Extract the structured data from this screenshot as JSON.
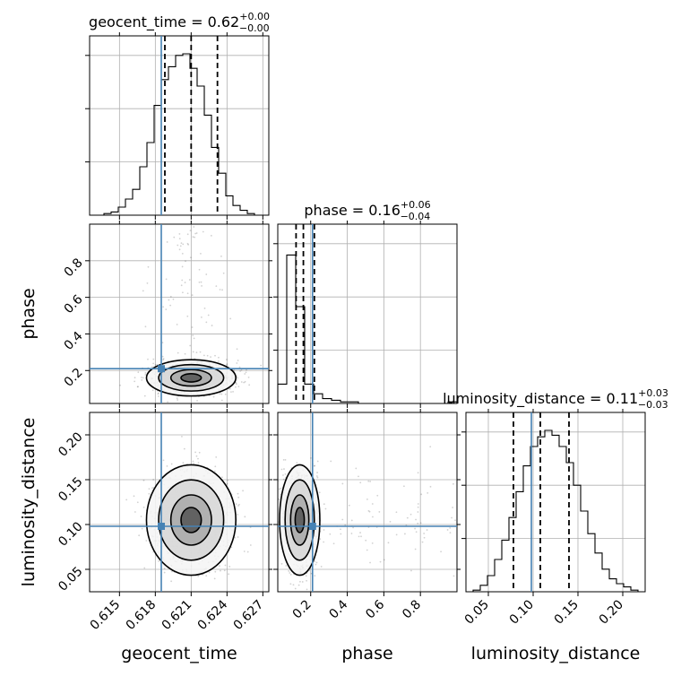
{
  "chart_data": {
    "type": "corner",
    "parameters": [
      {
        "name": "geocent_time",
        "range": [
          0.6125,
          0.6275
        ],
        "ticks": [
          0.615,
          0.618,
          0.621,
          0.624,
          0.627
        ],
        "tick_labels": [
          "0.615",
          "0.618",
          "0.621",
          "0.624",
          "0.627"
        ],
        "truth": 0.6185,
        "quantiles": [
          0.6188,
          0.621,
          0.6232
        ],
        "title": {
          "main": "geocent_time = 0.62",
          "sup": "+0.00",
          "sub": "−0.00"
        }
      },
      {
        "name": "phase",
        "range": [
          0.02,
          1.0
        ],
        "ticks": [
          0.2,
          0.4,
          0.6,
          0.8
        ],
        "tick_labels": [
          "0.2",
          "0.4",
          "0.6",
          "0.8"
        ],
        "truth": 0.21,
        "quantiles": [
          0.12,
          0.16,
          0.22
        ],
        "title": {
          "main": "phase = 0.16",
          "sup": "+0.06",
          "sub": "−0.04"
        }
      },
      {
        "name": "luminosity_distance",
        "range": [
          0.025,
          0.225
        ],
        "ticks": [
          0.05,
          0.1,
          0.15,
          0.2
        ],
        "tick_labels": [
          "0.05",
          "0.10",
          "0.15",
          "0.20"
        ],
        "truth": 0.098,
        "quantiles": [
          0.078,
          0.108,
          0.14
        ],
        "title": {
          "main": "luminosity_distance = 0.11",
          "sup": "+0.03",
          "sub": "−0.03"
        }
      }
    ],
    "histograms": {
      "geocent_time": [
        0,
        0,
        0.01,
        0.02,
        0.05,
        0.1,
        0.16,
        0.3,
        0.45,
        0.68,
        0.84,
        0.92,
        0.99,
        1.0,
        0.91,
        0.8,
        0.62,
        0.42,
        0.26,
        0.12,
        0.06,
        0.03,
        0.01,
        0,
        0
      ],
      "phase": [
        0.12,
        0.92,
        0.6,
        0.12,
        0.06,
        0.03,
        0.02,
        0.01,
        0.01,
        0,
        0,
        0,
        0,
        0,
        0,
        0,
        0,
        0,
        0,
        0.01
      ],
      "luminosity_distance": [
        0,
        0.01,
        0.04,
        0.1,
        0.2,
        0.32,
        0.46,
        0.62,
        0.78,
        0.9,
        0.96,
        1.0,
        0.97,
        0.9,
        0.8,
        0.66,
        0.5,
        0.36,
        0.24,
        0.14,
        0.08,
        0.05,
        0.03,
        0.01,
        0
      ]
    },
    "x_labels": [
      "geocent_time",
      "phase",
      "luminosity_distance"
    ],
    "y_labels": [
      "phase",
      "luminosity_distance"
    ],
    "truth_color": "#4682b4",
    "grid": true
  }
}
